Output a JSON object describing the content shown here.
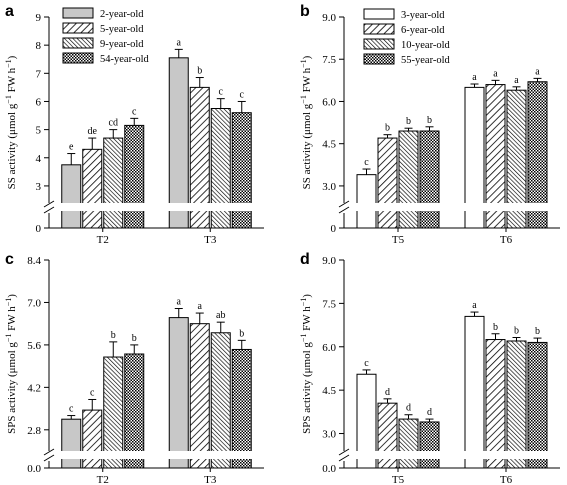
{
  "chart_data": [
    {
      "id": "a",
      "type": "bar",
      "panel_label": "a",
      "ylabel": "SS activity (μmol g⁻¹ FW h⁻¹)",
      "ylabel_parts": [
        "SS activity (μmol g",
        "−1",
        " FW h",
        "−1",
        ")"
      ],
      "ylim": [
        0,
        9
      ],
      "axis_break": [
        0,
        2.5
      ],
      "yticks": [
        0,
        3,
        4,
        5,
        6,
        7,
        8,
        9
      ],
      "ytick_labels": [
        "0",
        "3",
        "4",
        "5",
        "6",
        "7",
        "8",
        "9"
      ],
      "categories": [
        "T2",
        "T3"
      ],
      "legend_position": "top-left",
      "series": [
        {
          "name": "2-year-old",
          "pattern": "gray",
          "values": [
            3.75,
            7.55
          ],
          "errors": [
            0.4,
            0.3
          ],
          "letters": [
            "e",
            "a"
          ]
        },
        {
          "name": "5-year-old",
          "pattern": "diag",
          "values": [
            4.3,
            6.5
          ],
          "errors": [
            0.4,
            0.35
          ],
          "letters": [
            "de",
            "b"
          ]
        },
        {
          "name": "9-year-old",
          "pattern": "dense",
          "values": [
            4.7,
            5.75
          ],
          "errors": [
            0.3,
            0.35
          ],
          "letters": [
            "cd",
            "c"
          ]
        },
        {
          "name": "54-year-old",
          "pattern": "cross",
          "values": [
            5.15,
            5.6
          ],
          "errors": [
            0.25,
            0.4
          ],
          "letters": [
            "c",
            "c"
          ]
        }
      ]
    },
    {
      "id": "b",
      "type": "bar",
      "panel_label": "b",
      "ylabel": "SS activity (μmol g⁻¹ FW h⁻¹)",
      "ylabel_parts": [
        "SS activity (μmol g",
        "−1",
        " FW h",
        "−1",
        ")"
      ],
      "ylim": [
        0,
        9
      ],
      "axis_break": [
        0,
        2.5
      ],
      "yticks": [
        0,
        3,
        4.5,
        6,
        7.5,
        9
      ],
      "ytick_labels": [
        "0",
        "3.0",
        "4.5",
        "6.0",
        "7.5",
        "9.0"
      ],
      "categories": [
        "T5",
        "T6"
      ],
      "legend_position": "top-left",
      "series": [
        {
          "name": "3-year-old",
          "pattern": "white",
          "values": [
            3.4,
            6.5
          ],
          "errors": [
            0.2,
            0.12
          ],
          "letters": [
            "c",
            "a"
          ]
        },
        {
          "name": "6-year-old",
          "pattern": "diag",
          "values": [
            4.7,
            6.6
          ],
          "errors": [
            0.12,
            0.15
          ],
          "letters": [
            "b",
            "a"
          ]
        },
        {
          "name": "10-year-old",
          "pattern": "dense",
          "values": [
            4.95,
            6.4
          ],
          "errors": [
            0.1,
            0.12
          ],
          "letters": [
            "b",
            "a"
          ]
        },
        {
          "name": "55-year-old",
          "pattern": "cross",
          "values": [
            4.95,
            6.7
          ],
          "errors": [
            0.15,
            0.12
          ],
          "letters": [
            "b",
            "a"
          ]
        }
      ]
    },
    {
      "id": "c",
      "type": "bar",
      "panel_label": "c",
      "ylabel": "SPS activity (μmol g⁻¹ FW h⁻¹)",
      "ylabel_parts": [
        "SPS activity (μmol g",
        "−1",
        " FW h",
        "−1",
        ")"
      ],
      "ylim": [
        0,
        8.4
      ],
      "axis_break": [
        0,
        2.2
      ],
      "yticks": [
        0,
        2.8,
        4.2,
        5.6,
        7,
        8.4
      ],
      "ytick_labels": [
        "0.0",
        "2.8",
        "4.2",
        "5.6",
        "7.0",
        "8.4"
      ],
      "categories": [
        "T2",
        "T3"
      ],
      "legend_position": "none",
      "series": [
        {
          "name": "2-year-old",
          "pattern": "gray",
          "values": [
            3.15,
            6.5
          ],
          "errors": [
            0.12,
            0.3
          ],
          "letters": [
            "c",
            "a"
          ]
        },
        {
          "name": "5-year-old",
          "pattern": "diag",
          "values": [
            3.45,
            6.3
          ],
          "errors": [
            0.35,
            0.35
          ],
          "letters": [
            "c",
            "a"
          ]
        },
        {
          "name": "9-year-old",
          "pattern": "dense",
          "values": [
            5.2,
            6.0
          ],
          "errors": [
            0.5,
            0.35
          ],
          "letters": [
            "b",
            "ab"
          ]
        },
        {
          "name": "54-year-old",
          "pattern": "cross",
          "values": [
            5.3,
            5.45
          ],
          "errors": [
            0.3,
            0.3
          ],
          "letters": [
            "b",
            "b"
          ]
        }
      ]
    },
    {
      "id": "d",
      "type": "bar",
      "panel_label": "d",
      "ylabel": "SPS activity (μmol g⁻¹ FW h⁻¹)",
      "ylabel_parts": [
        "SPS activity (μmol g",
        "−1",
        " FW h",
        "−1",
        ")"
      ],
      "ylim": [
        0,
        9
      ],
      "axis_break": [
        0,
        2.5
      ],
      "yticks": [
        0,
        3,
        4.5,
        6,
        7.5,
        9
      ],
      "ytick_labels": [
        "0.0",
        "3.0",
        "4.5",
        "6.0",
        "7.5",
        "9.0"
      ],
      "categories": [
        "T5",
        "T6"
      ],
      "legend_position": "none",
      "series": [
        {
          "name": "3-year-old",
          "pattern": "white",
          "values": [
            5.05,
            7.05
          ],
          "errors": [
            0.15,
            0.15
          ],
          "letters": [
            "c",
            "a"
          ]
        },
        {
          "name": "6-year-old",
          "pattern": "diag",
          "values": [
            4.05,
            6.25
          ],
          "errors": [
            0.15,
            0.2
          ],
          "letters": [
            "d",
            "b"
          ]
        },
        {
          "name": "10-year-old",
          "pattern": "dense",
          "values": [
            3.5,
            6.2
          ],
          "errors": [
            0.15,
            0.12
          ],
          "letters": [
            "d",
            "b"
          ]
        },
        {
          "name": "55-year-old",
          "pattern": "cross",
          "values": [
            3.4,
            6.15
          ],
          "errors": [
            0.1,
            0.15
          ],
          "letters": [
            "d",
            "b"
          ]
        }
      ]
    }
  ]
}
